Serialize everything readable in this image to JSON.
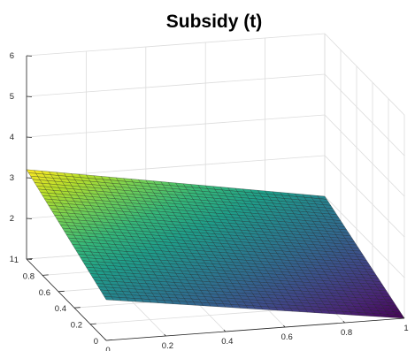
{
  "chart_data": {
    "type": "surface",
    "title": "Subsidy (t)",
    "colormap": "viridis",
    "x": {
      "ticks": [
        0,
        0.2,
        0.4,
        0.6,
        0.8,
        1
      ],
      "range": [
        0,
        1
      ]
    },
    "y": {
      "ticks": [
        0,
        0.2,
        0.4,
        0.6,
        0.8,
        1
      ],
      "range": [
        0,
        1
      ]
    },
    "z": {
      "ticks": [
        1,
        2,
        3,
        4,
        5,
        6
      ],
      "range": [
        1,
        6
      ]
    },
    "grid": true,
    "surface_corners": [
      {
        "x": 0,
        "y": 0,
        "z": 2
      },
      {
        "x": 1,
        "y": 0,
        "z": 1
      },
      {
        "x": 0,
        "y": 1,
        "z": 3.2
      },
      {
        "x": 1,
        "y": 1,
        "z": 2
      }
    ],
    "mesh_resolution": 40
  }
}
